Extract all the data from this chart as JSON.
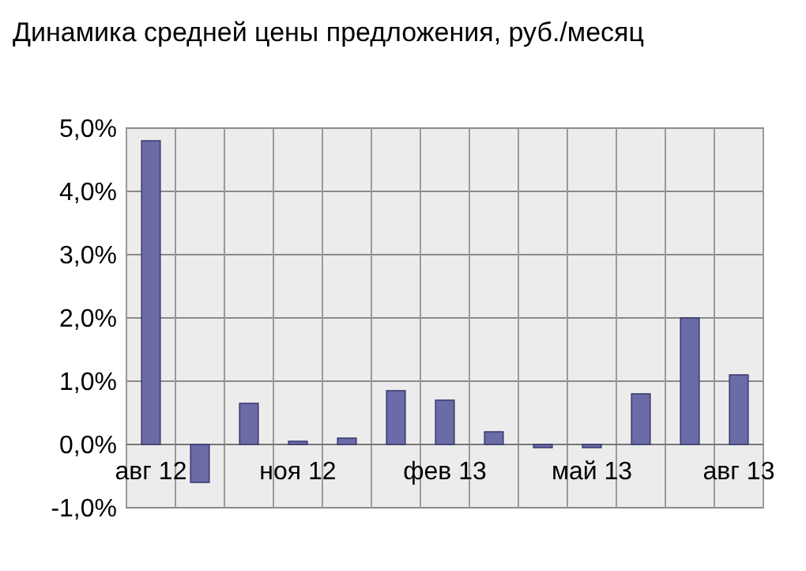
{
  "chart_data": {
    "type": "bar",
    "title": "Динамика средней цены предложения, руб./месяц",
    "categories": [
      "авг 12",
      null,
      null,
      "ноя 12",
      null,
      null,
      "фев 13",
      null,
      null,
      "май 13",
      null,
      null,
      "авг 13"
    ],
    "values": [
      4.8,
      -0.6,
      0.65,
      0.05,
      0.1,
      0.85,
      0.7,
      0.2,
      -0.05,
      -0.05,
      0.8,
      2.0,
      1.1
    ],
    "color": "#6b6ba8",
    "ylim": [
      -1,
      5
    ],
    "yticks": [
      {
        "value": -1,
        "label": "-1,0%"
      },
      {
        "value": 0,
        "label": "0,0%"
      },
      {
        "value": 1,
        "label": "1,0%"
      },
      {
        "value": 2,
        "label": "2,0%"
      },
      {
        "value": 3,
        "label": "3,0%"
      },
      {
        "value": 4,
        "label": "4,0%"
      },
      {
        "value": 5,
        "label": "5,0%"
      }
    ],
    "grid": true
  }
}
